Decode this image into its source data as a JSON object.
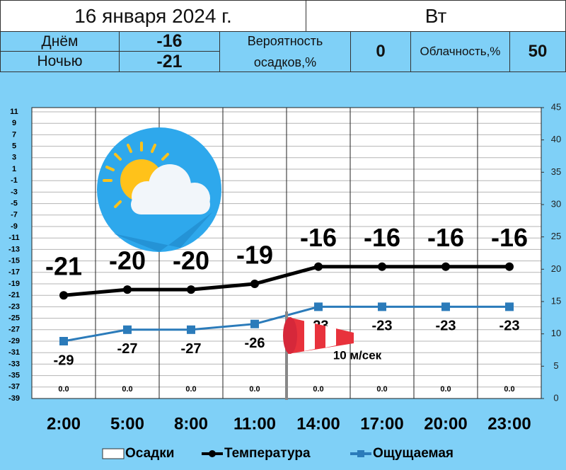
{
  "header": {
    "date": "16 января 2024 г.",
    "weekday": "Вт",
    "day_label": "Днём",
    "day_value": -16,
    "night_label": "Ночью",
    "night_value": -21,
    "precip_label": "Вероятность осадков,%",
    "precip_value": 0,
    "cloud_label": "Облачность,%",
    "cloud_value": 50
  },
  "chart_data": {
    "type": "weather",
    "categories": [
      "2:00",
      "5:00",
      "8:00",
      "11:00",
      "14:00",
      "17:00",
      "20:00",
      "23:00"
    ],
    "series": [
      {
        "name": "Осадки",
        "color": "#ffffff",
        "axis": "y2",
        "values": [
          0,
          0,
          0,
          0,
          0,
          0,
          0,
          0
        ],
        "value_labels": [
          "0.0",
          "0.0",
          "0.0",
          "0.0",
          "0.0",
          "0.0",
          "0.0",
          "0.0"
        ]
      },
      {
        "name": "Температура",
        "color": "#000000",
        "values": [
          -21,
          -20,
          -20,
          -19,
          -16,
          -16,
          -16,
          -16
        ]
      },
      {
        "name": "Ощущаемая",
        "color": "#2b7bba",
        "values": [
          -29,
          -27,
          -27,
          -26,
          -23,
          -23,
          -23,
          -23
        ]
      }
    ],
    "annotation": "10 м/сек",
    "ylim": [
      -39,
      11
    ],
    "yticks": [
      11,
      9,
      7,
      5,
      3,
      1,
      -1,
      -3,
      -5,
      -7,
      -9,
      -11,
      -13,
      -15,
      -17,
      -19,
      -21,
      -23,
      -25,
      -27,
      -29,
      -31,
      -33,
      -35,
      -37,
      -39
    ],
    "y2lim": [
      0,
      45
    ],
    "y2ticks": [
      0,
      5,
      10,
      15,
      20,
      25,
      30,
      35,
      40,
      45
    ],
    "grid": true
  }
}
